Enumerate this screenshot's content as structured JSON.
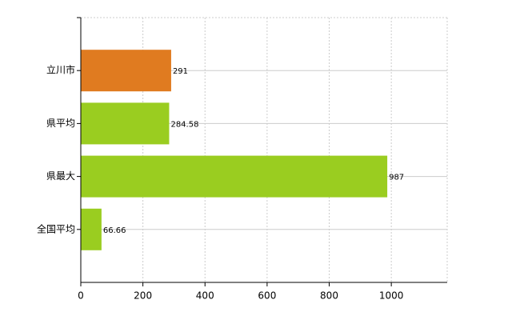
{
  "chart_data": {
    "type": "hbar",
    "categories": [
      "立川市",
      "県平均",
      "県最大",
      "全国平均"
    ],
    "values": [
      291,
      284.58,
      987,
      66.66
    ],
    "colors": [
      "#e07b20",
      "#9acd20",
      "#9acd20",
      "#9acd20"
    ],
    "xlim": [
      0,
      1180
    ],
    "xticks": [
      0,
      200,
      400,
      600,
      800,
      1000
    ],
    "grid": true
  }
}
